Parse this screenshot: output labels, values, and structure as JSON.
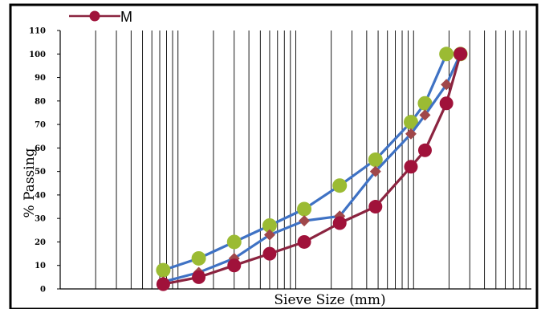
{
  "chart_data": {
    "type": "line",
    "title": "",
    "xlabel": "Sieve Size (mm)",
    "ylabel": "% Passing",
    "ylim": [
      0,
      110
    ],
    "yticks": [
      "0",
      "10",
      "20",
      "30",
      "40",
      "50",
      "60",
      "70",
      "80",
      "90",
      "100",
      "110"
    ],
    "xscale": "log",
    "grid": "vertical log gridlines",
    "legend": {
      "position": "top-left",
      "entries": [
        {
          "label": "M",
          "marker": "circle",
          "color": "#8B2440"
        }
      ]
    },
    "series": [
      {
        "marker": "circle",
        "line_color": "#3F72C4",
        "marker_color": "#9BBB33",
        "points": [
          {
            "x": 0.075,
            "y": 8
          },
          {
            "x": 0.15,
            "y": 13
          },
          {
            "x": 0.3,
            "y": 20
          },
          {
            "x": 0.6,
            "y": 27
          },
          {
            "x": 1.18,
            "y": 34
          },
          {
            "x": 2.36,
            "y": 44
          },
          {
            "x": 4.75,
            "y": 55
          },
          {
            "x": 9.5,
            "y": 71
          },
          {
            "x": 12.5,
            "y": 79
          },
          {
            "x": 19,
            "y": 100
          },
          {
            "x": 25,
            "y": 100
          }
        ]
      },
      {
        "marker": "diamond",
        "line_color": "#3F72C4",
        "marker_color": "#A0474A",
        "points": [
          {
            "x": 0.075,
            "y": 3
          },
          {
            "x": 0.15,
            "y": 7
          },
          {
            "x": 0.3,
            "y": 13
          },
          {
            "x": 0.6,
            "y": 23
          },
          {
            "x": 1.18,
            "y": 29
          },
          {
            "x": 2.36,
            "y": 31
          },
          {
            "x": 4.75,
            "y": 50
          },
          {
            "x": 9.5,
            "y": 66
          },
          {
            "x": 12.5,
            "y": 74
          },
          {
            "x": 19,
            "y": 87
          },
          {
            "x": 25,
            "y": 100
          }
        ]
      },
      {
        "name": "M",
        "marker": "circle",
        "line_color": "#8B2440",
        "marker_color": "#A0123A",
        "points": [
          {
            "x": 0.075,
            "y": 2
          },
          {
            "x": 0.15,
            "y": 5
          },
          {
            "x": 0.3,
            "y": 10
          },
          {
            "x": 0.6,
            "y": 15
          },
          {
            "x": 1.18,
            "y": 20
          },
          {
            "x": 2.36,
            "y": 28
          },
          {
            "x": 4.75,
            "y": 35
          },
          {
            "x": 9.5,
            "y": 52
          },
          {
            "x": 12.5,
            "y": 59
          },
          {
            "x": 19,
            "y": 79
          },
          {
            "x": 25,
            "y": 100
          }
        ]
      }
    ]
  }
}
